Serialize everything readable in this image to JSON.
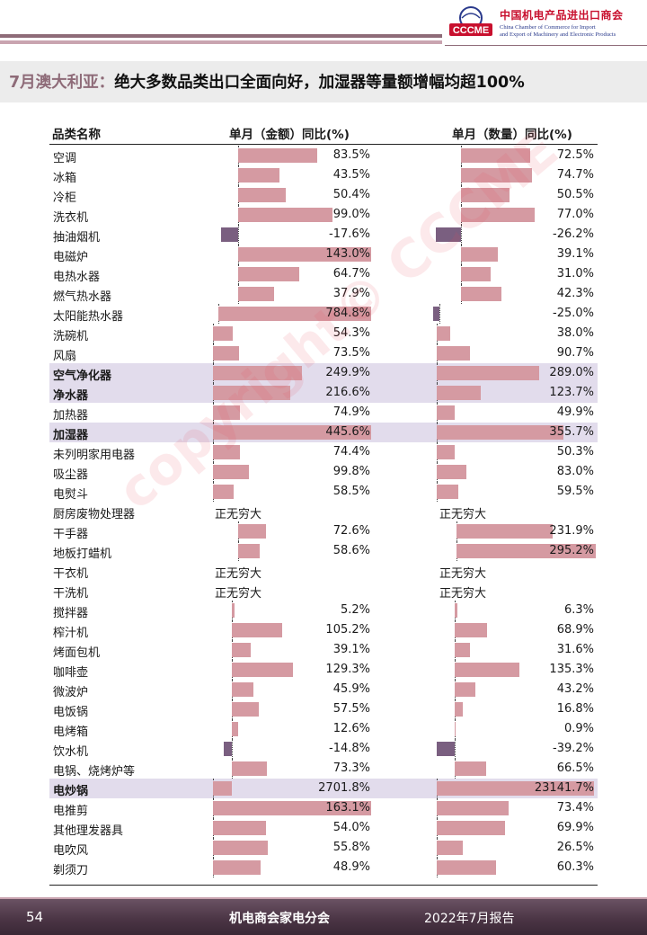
{
  "logo": {
    "mark_text": "CCCME",
    "cn": "中国机电产品进出口商会",
    "en_line1": "China Chamber of Commerce for Import",
    "en_line2": "and Export of Machinery and Electronic Products"
  },
  "title": {
    "accent": "7月澳大利亚：",
    "rest": "绝大多数品类出口全面向好，加湿器等量额增幅均超100%"
  },
  "table": {
    "header_category": "品类名称",
    "header_value": "单月（金额）同比(%)",
    "header_quantity": "单月（数量）同比(%)",
    "rows": [
      {
        "name": "空调",
        "v": "83.5%",
        "q": "72.5%"
      },
      {
        "name": "冰箱",
        "v": "43.5%",
        "q": "74.7%"
      },
      {
        "name": "冷柜",
        "v": "50.4%",
        "q": "50.5%"
      },
      {
        "name": "洗衣机",
        "v": "99.0%",
        "q": "77.0%"
      },
      {
        "name": "抽油烟机",
        "v": "-17.6%",
        "q": "-26.2%"
      },
      {
        "name": "电磁炉",
        "v": "143.0%",
        "q": "39.1%"
      },
      {
        "name": "电热水器",
        "v": "64.7%",
        "q": "31.0%"
      },
      {
        "name": "燃气热水器",
        "v": "37.9%",
        "q": "42.3%"
      },
      {
        "name": "太阳能热水器",
        "v": "784.8%",
        "q": "-25.0%"
      },
      {
        "name": "洗碗机",
        "v": "54.3%",
        "q": "38.0%"
      },
      {
        "name": "风扇",
        "v": "73.5%",
        "q": "90.7%"
      },
      {
        "name": "空气净化器",
        "v": "249.9%",
        "q": "289.0%"
      },
      {
        "name": "净水器",
        "v": "216.6%",
        "q": "123.7%"
      },
      {
        "name": "加热器",
        "v": "74.9%",
        "q": "49.9%"
      },
      {
        "name": "加湿器",
        "v": "445.6%",
        "q": "355.7%"
      },
      {
        "name": "未列明家用电器",
        "v": "74.4%",
        "q": "50.3%"
      },
      {
        "name": "吸尘器",
        "v": "99.8%",
        "q": "83.0%"
      },
      {
        "name": "电熨斗",
        "v": "58.5%",
        "q": "59.5%"
      },
      {
        "name": "厨房废物处理器",
        "v": "正无穷大",
        "q": "正无穷大"
      },
      {
        "name": "干手器",
        "v": "72.6%",
        "q": "231.9%"
      },
      {
        "name": "地板打蜡机",
        "v": "58.6%",
        "q": "295.2%"
      },
      {
        "name": "干衣机",
        "v": "正无穷大",
        "q": "正无穷大"
      },
      {
        "name": "干洗机",
        "v": "正无穷大",
        "q": "正无穷大"
      },
      {
        "name": "搅拌器",
        "v": "5.2%",
        "q": "6.3%"
      },
      {
        "name": "榨汁机",
        "v": "105.2%",
        "q": "68.9%"
      },
      {
        "name": "烤面包机",
        "v": "39.1%",
        "q": "31.6%"
      },
      {
        "name": "咖啡壶",
        "v": "129.3%",
        "q": "135.3%"
      },
      {
        "name": "微波炉",
        "v": "45.9%",
        "q": "43.2%"
      },
      {
        "name": "电饭锅",
        "v": "57.5%",
        "q": "16.8%"
      },
      {
        "name": "电烤箱",
        "v": "12.6%",
        "q": "0.9%"
      },
      {
        "name": "饮水机",
        "v": "-14.8%",
        "q": "-39.2%"
      },
      {
        "name": "电锅、烧烤炉等",
        "v": "73.3%",
        "q": "66.5%"
      },
      {
        "name": "电炒锅",
        "v": "2701.8%",
        "q": "23141.7%"
      },
      {
        "name": "电推剪",
        "v": "163.1%",
        "q": "73.4%"
      },
      {
        "name": "其他理发器具",
        "v": "54.0%",
        "q": "69.9%"
      },
      {
        "name": "电吹风",
        "v": "55.8%",
        "q": "26.5%"
      },
      {
        "name": "剃须刀",
        "v": "48.9%",
        "q": "60.3%"
      }
    ]
  },
  "watermark": "copyright© CCCME",
  "footer": {
    "page": "54",
    "org": "机电商会家电分会",
    "report": "2022年7月报告"
  },
  "colors": {
    "positive_bar": "#d59aa2",
    "negative_bar": "#7a5f80",
    "highlight_row": "#e2dcec",
    "accent": "#8e6b78"
  }
}
